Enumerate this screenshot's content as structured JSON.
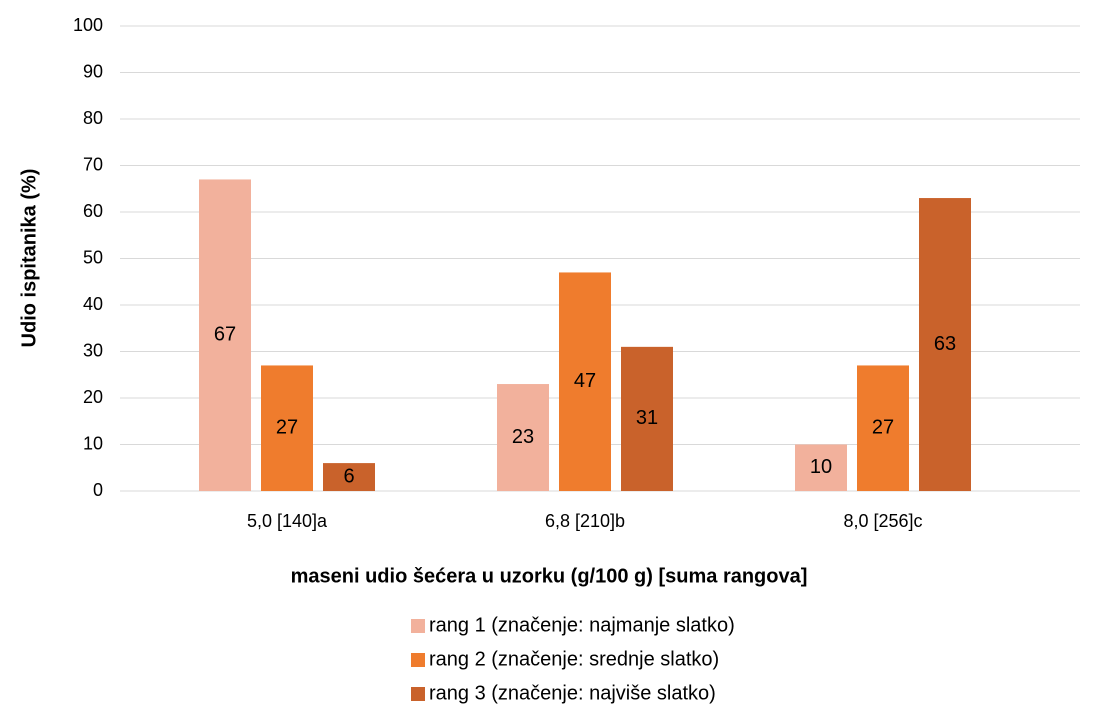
{
  "chart_data": {
    "type": "bar",
    "x_label": "maseni udio šećera u uzorku (g/100 g) [suma rangova]",
    "y_label": "Udio ispitanika (%)",
    "categories": [
      "5,0 [140]a",
      "6,8 [210]b",
      "8,0 [256]c"
    ],
    "series": [
      {
        "name": "rang 1 (značenje: najmanje slatko)",
        "color": "#f2b19c",
        "values": [
          67,
          23,
          10
        ]
      },
      {
        "name": "rang 2 (značenje: srednje slatko)",
        "color": "#ef7c2d",
        "values": [
          27,
          47,
          27
        ]
      },
      {
        "name": "rang 3 (značenje: najviše slatko)",
        "color": "#c9622b",
        "values": [
          6,
          31,
          63
        ]
      }
    ],
    "ylim": [
      0,
      100
    ],
    "yticks": [
      0,
      10,
      20,
      30,
      40,
      50,
      60,
      70,
      80,
      90,
      100
    ],
    "grid": true,
    "legend": "bottom"
  }
}
